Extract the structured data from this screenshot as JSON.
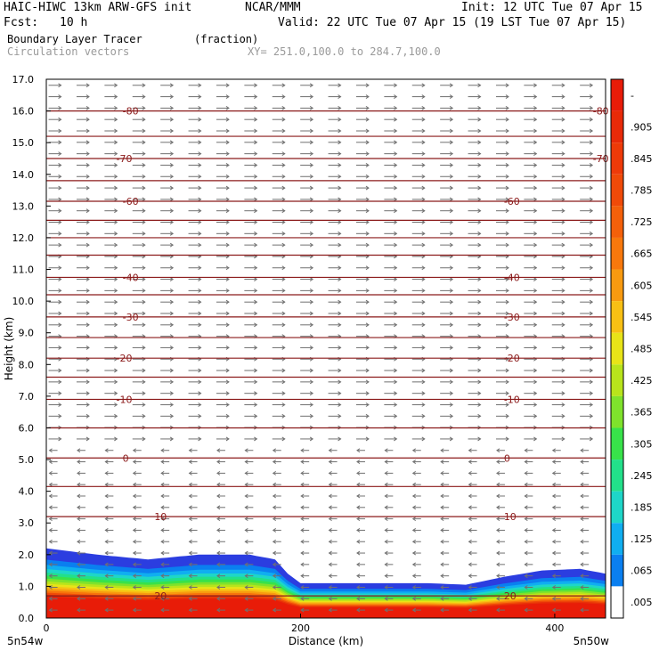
{
  "header": {
    "model": "HAIC-HIWC 13km ARW-GFS init",
    "org": "NCAR/MMM",
    "init": "Init: 12 UTC Tue 07 Apr 15",
    "fcst_label": "Fcst:",
    "fcst_value": "10 h",
    "valid": "Valid: 22 UTC Tue 07 Apr 15 (19 LST Tue 07 Apr 15)",
    "field": "Boundary Layer Tracer",
    "units": "(fraction)",
    "vectors": "Circulation vectors",
    "xy": "XY= 251.0,100.0 to 284.7,100.0"
  },
  "colors": {
    "isotherm": "#8b1a1a",
    "vector": "#707070",
    "palette": [
      "#ffffff",
      "#2b3de0",
      "#0a7ff0",
      "#10aef0",
      "#1ed6c8",
      "#22e08a",
      "#38e24a",
      "#7fe22c",
      "#b8e41c",
      "#e8e418",
      "#f8c014",
      "#f89a10",
      "#f8720c",
      "#f04a08",
      "#e83008",
      "#e81c08"
    ]
  },
  "chart_data": {
    "type": "heatmap",
    "title": "Boundary Layer Tracer",
    "xlabel": "Distance (km)",
    "ylabel": "Height (km)",
    "xlim": [
      0,
      440
    ],
    "ylim": [
      0,
      17
    ],
    "xticks": [
      0,
      200,
      400
    ],
    "yticks": [
      "0.0",
      "1.0",
      "2.0",
      "3.0",
      "4.0",
      "5.0",
      "6.0",
      "7.0",
      "8.0",
      "9.0",
      "10.0",
      "11.0",
      "12.0",
      "13.0",
      "14.0",
      "15.0",
      "16.0",
      "17.0"
    ],
    "x_endpoints": {
      "left": "5n54w",
      "right": "5n50w"
    },
    "colorbar": {
      "labels": [
        "-",
        ".905",
        ".845",
        ".785",
        ".725",
        ".665",
        ".605",
        ".545",
        ".485",
        ".425",
        ".365",
        ".305",
        ".245",
        ".185",
        ".125",
        ".065",
        ".005"
      ]
    },
    "tracer_top_km": {
      "x": [
        0,
        40,
        80,
        120,
        160,
        180,
        190,
        200,
        250,
        300,
        330,
        360,
        390,
        420,
        440
      ],
      "y": [
        2.2,
        2.0,
        1.85,
        2.0,
        2.0,
        1.85,
        1.4,
        1.1,
        1.1,
        1.1,
        1.05,
        1.3,
        1.5,
        1.55,
        1.4
      ]
    },
    "isotherms": [
      {
        "label": "-80",
        "height_km": 16.0,
        "label_x": [
          60,
          430
        ]
      },
      {
        "label": "-70",
        "height_km": 14.5,
        "label_x": [
          55,
          430
        ]
      },
      {
        "label": "-60",
        "height_km": 13.15,
        "label_x": [
          60,
          360
        ]
      },
      {
        "label": "-40",
        "height_km": 10.75,
        "label_x": [
          60,
          360
        ]
      },
      {
        "label": "-30",
        "height_km": 9.5,
        "label_x": [
          60,
          360
        ]
      },
      {
        "label": "-20",
        "height_km": 8.2,
        "label_x": [
          55,
          360
        ]
      },
      {
        "label": "-10",
        "height_km": 6.9,
        "label_x": [
          55,
          360
        ]
      },
      {
        "label": "0",
        "height_km": 5.05,
        "label_x": [
          60,
          360
        ]
      },
      {
        "label": "10",
        "height_km": 3.2,
        "label_x": [
          85,
          360
        ]
      },
      {
        "label": "20",
        "height_km": 0.7,
        "label_x": [
          85,
          360
        ]
      }
    ]
  }
}
